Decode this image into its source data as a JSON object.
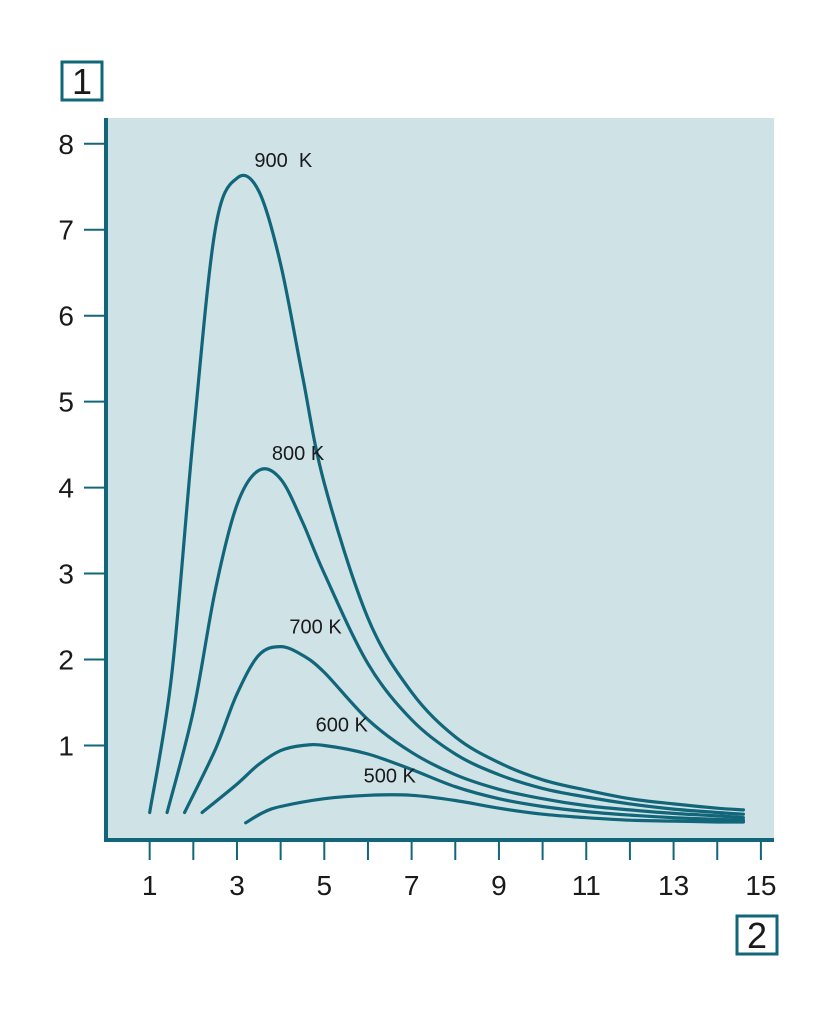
{
  "chart_data": {
    "type": "line",
    "title": "",
    "xlabel_badge": "2",
    "ylabel_badge": "1",
    "xlim": [
      0,
      15.3
    ],
    "ylim": [
      -0.1,
      8.3
    ],
    "x_ticks": [
      1,
      2,
      3,
      4,
      5,
      6,
      7,
      8,
      9,
      10,
      11,
      12,
      13,
      14,
      15
    ],
    "x_tick_labels": [
      {
        "value": 1,
        "label": "1"
      },
      {
        "value": 3,
        "label": "3"
      },
      {
        "value": 5,
        "label": "5"
      },
      {
        "value": 7,
        "label": "7"
      },
      {
        "value": 9,
        "label": "9"
      },
      {
        "value": 11,
        "label": "11"
      },
      {
        "value": 13,
        "label": "13"
      },
      {
        "value": 15,
        "label": "15"
      }
    ],
    "y_ticks": [
      {
        "value": 1,
        "label": "1"
      },
      {
        "value": 2,
        "label": "2"
      },
      {
        "value": 3,
        "label": "3"
      },
      {
        "value": 4,
        "label": "4"
      },
      {
        "value": 5,
        "label": "5"
      },
      {
        "value": 6,
        "label": "6"
      },
      {
        "value": 7,
        "label": "7"
      },
      {
        "value": 8,
        "label": "8"
      }
    ],
    "grid": false,
    "colors": {
      "plot_background": "#cfe2e6",
      "curve": "#11667a",
      "axis": "#11667a",
      "badge_border": "#11667a"
    },
    "series": [
      {
        "name": "900 K",
        "label": "900  K",
        "label_at": [
          3.4,
          7.73
        ],
        "points": [
          [
            1.0,
            0.22
          ],
          [
            1.5,
            1.8
          ],
          [
            2.0,
            4.6
          ],
          [
            2.5,
            7.0
          ],
          [
            3.0,
            7.6
          ],
          [
            3.5,
            7.45
          ],
          [
            4.0,
            6.6
          ],
          [
            4.5,
            5.3
          ],
          [
            5.0,
            4.05
          ],
          [
            6.0,
            2.48
          ],
          [
            7.0,
            1.62
          ],
          [
            8.0,
            1.1
          ],
          [
            9.0,
            0.8
          ],
          [
            10.0,
            0.6
          ],
          [
            11.0,
            0.48
          ],
          [
            12.0,
            0.38
          ],
          [
            13.0,
            0.32
          ],
          [
            14.0,
            0.27
          ],
          [
            14.6,
            0.25
          ]
        ]
      },
      {
        "name": "800 K",
        "label": "800 K",
        "label_at": [
          3.8,
          4.32
        ],
        "points": [
          [
            1.4,
            0.22
          ],
          [
            2.0,
            1.4
          ],
          [
            2.5,
            2.8
          ],
          [
            3.0,
            3.8
          ],
          [
            3.5,
            4.2
          ],
          [
            4.0,
            4.1
          ],
          [
            4.5,
            3.6
          ],
          [
            5.0,
            3.0
          ],
          [
            6.0,
            1.95
          ],
          [
            7.0,
            1.3
          ],
          [
            8.0,
            0.9
          ],
          [
            9.0,
            0.66
          ],
          [
            10.0,
            0.5
          ],
          [
            11.0,
            0.4
          ],
          [
            12.0,
            0.32
          ],
          [
            13.0,
            0.26
          ],
          [
            14.0,
            0.22
          ],
          [
            14.6,
            0.2
          ]
        ]
      },
      {
        "name": "700 K",
        "label": "700 K",
        "label_at": [
          4.2,
          2.3
        ],
        "points": [
          [
            1.8,
            0.22
          ],
          [
            2.5,
            0.95
          ],
          [
            3.0,
            1.6
          ],
          [
            3.5,
            2.05
          ],
          [
            4.0,
            2.15
          ],
          [
            4.5,
            2.05
          ],
          [
            5.0,
            1.85
          ],
          [
            6.0,
            1.3
          ],
          [
            7.0,
            0.92
          ],
          [
            8.0,
            0.66
          ],
          [
            9.0,
            0.49
          ],
          [
            10.0,
            0.38
          ],
          [
            11.0,
            0.3
          ],
          [
            12.0,
            0.25
          ],
          [
            13.0,
            0.21
          ],
          [
            14.0,
            0.18
          ],
          [
            14.6,
            0.16
          ]
        ]
      },
      {
        "name": "600 K",
        "label": "600 K",
        "label_at": [
          4.8,
          1.16
        ],
        "points": [
          [
            2.2,
            0.22
          ],
          [
            3.0,
            0.55
          ],
          [
            3.5,
            0.78
          ],
          [
            4.0,
            0.94
          ],
          [
            4.5,
            1.0
          ],
          [
            5.0,
            1.0
          ],
          [
            6.0,
            0.9
          ],
          [
            7.0,
            0.72
          ],
          [
            8.0,
            0.52
          ],
          [
            9.0,
            0.38
          ],
          [
            10.0,
            0.29
          ],
          [
            11.0,
            0.23
          ],
          [
            12.0,
            0.19
          ],
          [
            13.0,
            0.16
          ],
          [
            14.0,
            0.14
          ],
          [
            14.6,
            0.13
          ]
        ]
      },
      {
        "name": "500 K",
        "label": "500 K",
        "label_at": [
          5.9,
          0.57
        ],
        "points": [
          [
            3.2,
            0.1
          ],
          [
            3.6,
            0.22
          ],
          [
            4.0,
            0.29
          ],
          [
            5.0,
            0.38
          ],
          [
            6.0,
            0.42
          ],
          [
            7.0,
            0.42
          ],
          [
            8.0,
            0.36
          ],
          [
            9.0,
            0.27
          ],
          [
            10.0,
            0.2
          ],
          [
            11.0,
            0.16
          ],
          [
            12.0,
            0.13
          ],
          [
            13.0,
            0.12
          ],
          [
            14.0,
            0.11
          ],
          [
            14.6,
            0.11
          ]
        ]
      }
    ]
  }
}
